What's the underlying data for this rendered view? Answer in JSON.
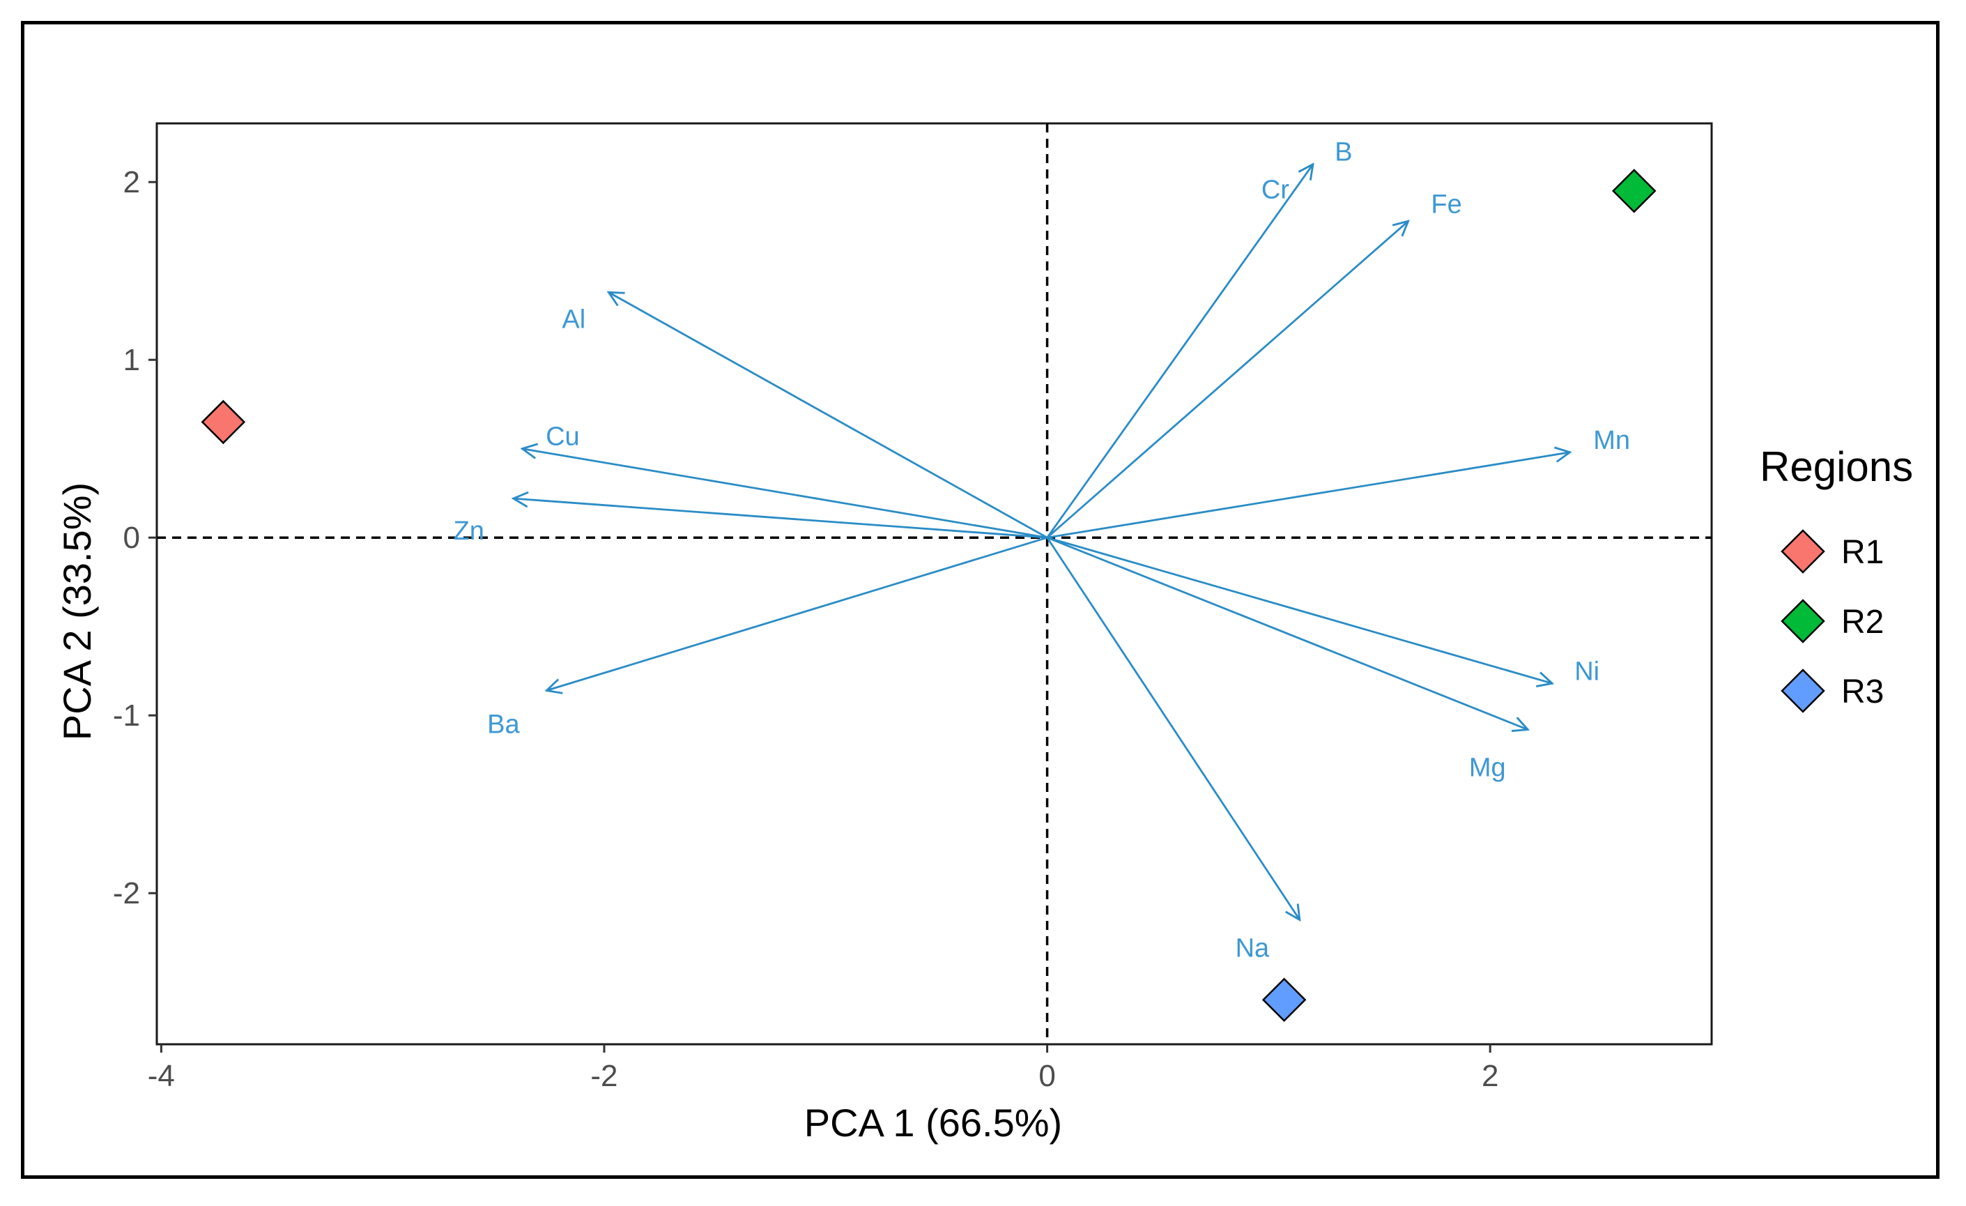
{
  "chart_data": {
    "type": "scatter",
    "subtype": "pca-biplot",
    "xlabel": "PCA 1 (66.5%)",
    "ylabel": "PCA 2 (33.5%)",
    "xlim": [
      -4.02,
      3.0
    ],
    "ylim": [
      -2.85,
      2.33
    ],
    "x_ticks": [
      -4,
      -2,
      0,
      2
    ],
    "x_tick_labels": [
      "-4",
      "-2",
      "0",
      "2"
    ],
    "y_ticks": [
      -2,
      -1,
      0,
      1,
      2
    ],
    "y_tick_labels": [
      "-2",
      "-1",
      "0",
      "1",
      "2"
    ],
    "grid": false,
    "reference_lines": {
      "x": 0,
      "y": 0,
      "style": "dashed"
    },
    "points": [
      {
        "label": "R1",
        "x": -3.72,
        "y": 0.65
      },
      {
        "label": "R2",
        "x": 2.65,
        "y": 1.95
      },
      {
        "label": "R3",
        "x": 1.07,
        "y": -2.6
      }
    ],
    "loadings": [
      {
        "name": "B",
        "x": 1.2,
        "y": 2.1
      },
      {
        "name": "Cr",
        "x": 1.2,
        "y": 2.1
      },
      {
        "name": "Fe",
        "x": 1.63,
        "y": 1.78
      },
      {
        "name": "Al",
        "x": -1.98,
        "y": 1.38
      },
      {
        "name": "Cu",
        "x": -2.37,
        "y": 0.5
      },
      {
        "name": "Zn",
        "x": -2.41,
        "y": 0.22
      },
      {
        "name": "Mn",
        "x": 2.36,
        "y": 0.48
      },
      {
        "name": "Ni",
        "x": 2.28,
        "y": -0.82
      },
      {
        "name": "Mg",
        "x": 2.17,
        "y": -1.08
      },
      {
        "name": "Ba",
        "x": -2.26,
        "y": -0.86
      },
      {
        "name": "Na",
        "x": 1.14,
        "y": -2.15
      }
    ],
    "legend": {
      "title": "Regions",
      "position": "right",
      "entries": [
        {
          "label": "R1",
          "color": "#f8766d"
        },
        {
          "label": "R2",
          "color": "#00ba38"
        },
        {
          "label": "R3",
          "color": "#619cff"
        }
      ]
    },
    "arrow_color": "#2a8cc6",
    "label_color": "#3d98d3"
  }
}
